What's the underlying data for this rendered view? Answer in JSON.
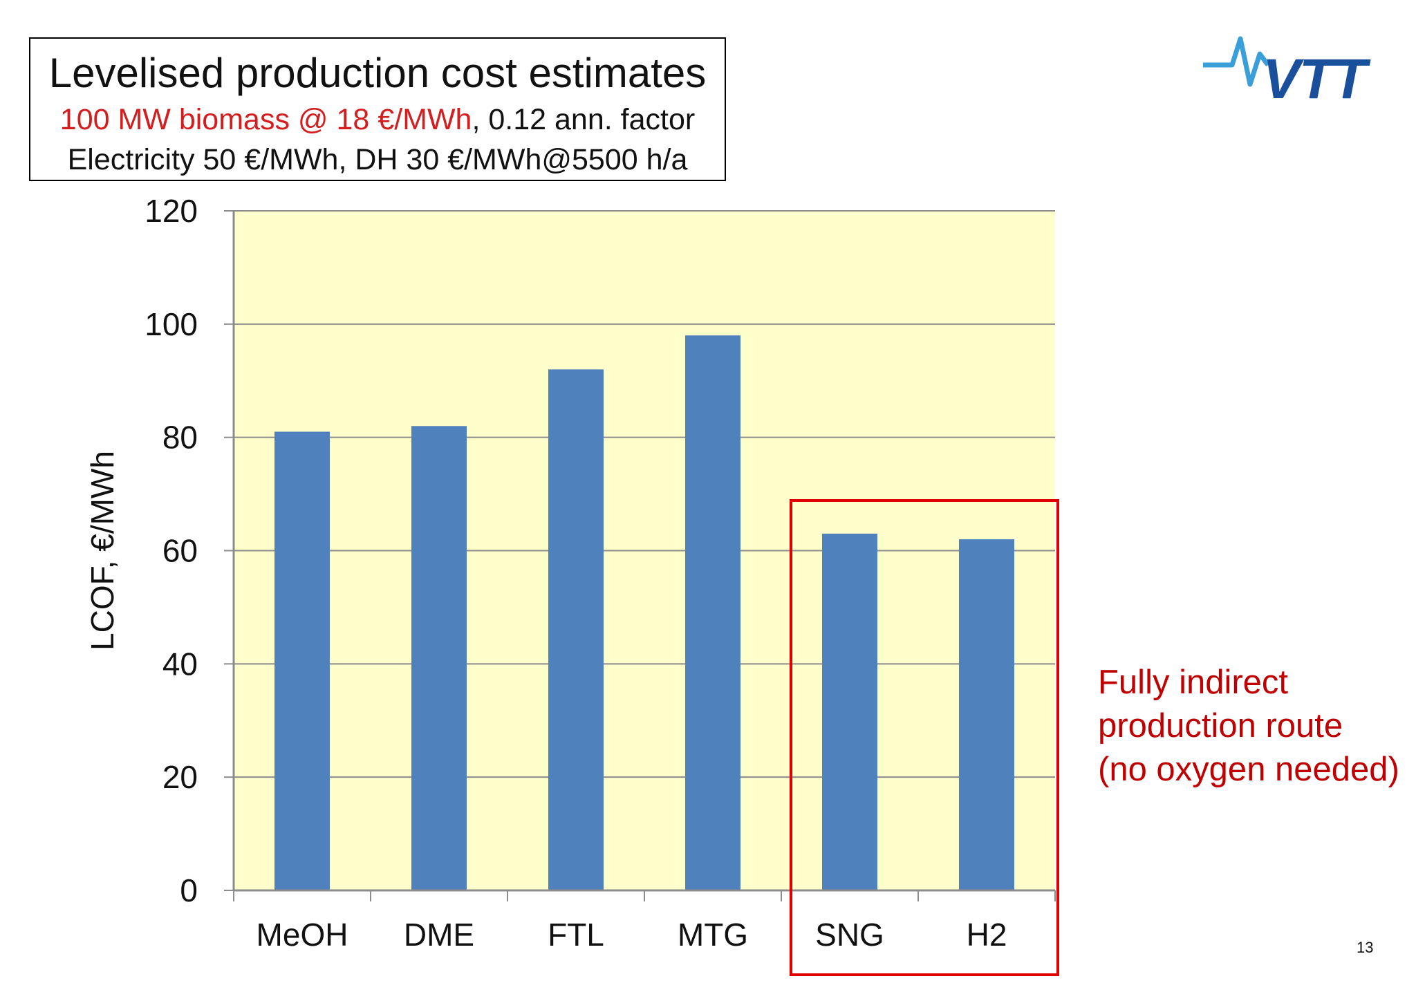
{
  "header": {
    "title": "Levelised production cost estimates",
    "subtitle_red": "100 MW biomass @ 18 €/MWh",
    "subtitle_rest": ", 0.12 ann. factor",
    "subtitle2": "Electricity 50 €/MWh, DH 30 €/MWh@5500 h/a"
  },
  "logo": {
    "text": "VTT",
    "color": "#1a4f9c",
    "accent": "#3a9fd8"
  },
  "annotation": {
    "lines": [
      "Fully indirect",
      "production route",
      "(no oxygen needed)"
    ],
    "color": "#c00000"
  },
  "page_number": "13",
  "colors": {
    "plot_background": "#ffffcc",
    "bar": "#4f81bd",
    "grid": "#8c8c8c",
    "highlight_box": "#e00000"
  },
  "chart_data": {
    "type": "bar",
    "categories": [
      "MeOH",
      "DME",
      "FTL",
      "MTG",
      "SNG",
      "H2"
    ],
    "values": [
      81,
      82,
      92,
      98,
      63,
      62
    ],
    "ylabel": "LCOF, €/MWh",
    "xlabel": "",
    "ylim": [
      0,
      120
    ],
    "yticks": [
      0,
      20,
      40,
      60,
      80,
      100,
      120
    ],
    "grid": true,
    "highlighted_categories": [
      "SNG",
      "H2"
    ]
  }
}
